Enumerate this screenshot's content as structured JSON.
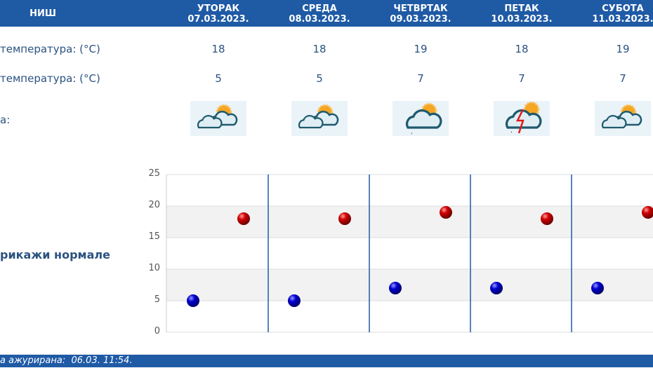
{
  "header": {
    "city": "НИШ",
    "days": [
      {
        "name": "УТОРАК",
        "date": "07.03.2023.",
        "max": "18",
        "min": "5",
        "weather_icon": "partly-cloudy-icon"
      },
      {
        "name": "СРЕДА",
        "date": "08.03.2023.",
        "max": "18",
        "min": "5",
        "weather_icon": "partly-cloudy-icon"
      },
      {
        "name": "ЧЕТВРТАК",
        "date": "09.03.2023.",
        "max": "19",
        "min": "7",
        "weather_icon": "cloudy-light-rain-icon"
      },
      {
        "name": "ПЕТАК",
        "date": "10.03.2023.",
        "max": "18",
        "min": "7",
        "weather_icon": "thunderstorm-icon"
      },
      {
        "name": "СУБОТА",
        "date": "11.03.2023.",
        "max": "19",
        "min": "7",
        "weather_icon": "partly-cloudy-icon"
      }
    ]
  },
  "rows": {
    "max_label": " температура: (°C)",
    "min_label": "температура: (°C)",
    "weather_label": "а:"
  },
  "show_normals": "рикажи нормале",
  "footer": {
    "label": "а ажурирана:",
    "value": "06.03. 11:54."
  },
  "colors": {
    "header": "#1f5aa5",
    "max_dot": "#cc0000",
    "min_dot": "#0000cc"
  },
  "chart_data": {
    "type": "scatter",
    "ylim": [
      0,
      25
    ],
    "yticks": [
      "0",
      "5",
      "10",
      "15",
      "20",
      "25"
    ],
    "series": [
      {
        "values": [
          18,
          18,
          19,
          18,
          19
        ],
        "color": "#cc0000"
      },
      {
        "values": [
          5,
          5,
          7,
          7,
          7
        ],
        "color": "#0000cc"
      }
    ]
  }
}
